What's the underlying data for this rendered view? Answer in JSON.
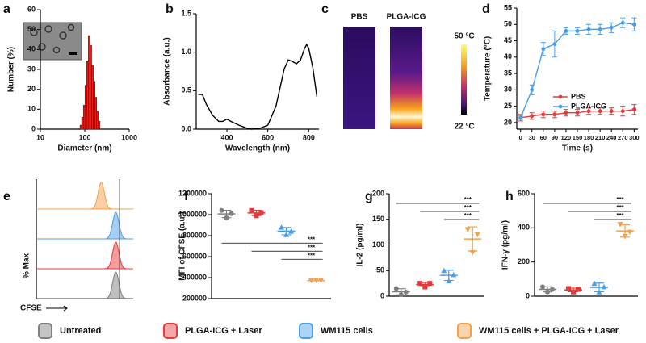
{
  "chart_data": [
    {
      "type": "histogram",
      "label": "a",
      "xlabel": "Diameter (nm)",
      "ylabel": "Number (%)",
      "log_x": true,
      "bins": [
        78,
        85,
        93,
        101,
        110,
        120,
        131,
        143,
        156,
        170,
        185,
        202,
        220
      ],
      "values": [
        2,
        6,
        12,
        22,
        34,
        47,
        42,
        32,
        24,
        16,
        9,
        4
      ],
      "color": "#e0201b",
      "xlim": [
        10,
        1000
      ],
      "xticks": [
        10,
        100,
        1000
      ],
      "ylim": [
        0,
        60
      ],
      "yticks": [
        0,
        10,
        20,
        30,
        40,
        50,
        60
      ]
    },
    {
      "type": "line",
      "label": "b",
      "xlabel": "Wavelength (nm)",
      "ylabel": "Absorbance (a.u.)",
      "x": [
        260,
        280,
        300,
        330,
        360,
        380,
        400,
        420,
        460,
        500,
        520,
        560,
        600,
        640,
        680,
        700,
        720,
        740,
        760,
        780,
        790,
        800,
        820,
        840
      ],
      "series": [
        {
          "color": "#000000",
          "values": [
            0.45,
            0.45,
            0.32,
            0.18,
            0.1,
            0.1,
            0.13,
            0.1,
            0.05,
            0.01,
            0.0,
            0.01,
            0.05,
            0.3,
            0.78,
            0.9,
            0.88,
            0.85,
            0.9,
            1.05,
            1.1,
            1.05,
            0.8,
            0.42
          ]
        }
      ],
      "xlim": [
        250,
        850
      ],
      "xticks": [
        400,
        600,
        800
      ],
      "ylim": [
        0,
        1.5
      ],
      "yticks": [
        {
          "value": 0,
          "label": "0.0"
        },
        {
          "value": 0.5,
          "label": "0.5"
        },
        {
          "value": 1,
          "label": "1.0"
        },
        {
          "value": 1.5,
          "label": "1.5"
        }
      ]
    },
    {
      "type": "thermal",
      "label": "c",
      "columns": [
        "PBS",
        "PLGA-ICG"
      ],
      "scale_max": "50 °C",
      "scale_min": "22 °C"
    },
    {
      "type": "line",
      "label": "d",
      "xlabel": "Time (s)",
      "ylabel": "Temperature (°C)",
      "markers": true,
      "legend": "lower center",
      "x": [
        0,
        30,
        60,
        90,
        120,
        150,
        180,
        210,
        240,
        270,
        300
      ],
      "series": [
        {
          "name": "PBS",
          "color": "#e8393a",
          "values": [
            21.5,
            22,
            22.5,
            22.5,
            23,
            23,
            23.5,
            23.5,
            23.5,
            23.5,
            24
          ],
          "errors": [
            1,
            1,
            1,
            1,
            1,
            1,
            1,
            1,
            1,
            1.5,
            1.5
          ]
        },
        {
          "name": "PLGA-ICG",
          "color": "#4a9de8",
          "values": [
            21.5,
            30,
            42.5,
            44,
            48,
            48,
            48.5,
            48.5,
            49,
            50.5,
            50
          ],
          "errors": [
            0.5,
            1.5,
            2,
            4,
            1,
            1,
            1.5,
            1.5,
            1.5,
            1.5,
            2
          ]
        }
      ],
      "xlim": [
        -10,
        310
      ],
      "xticks": [
        0,
        30,
        60,
        90,
        120,
        150,
        180,
        210,
        240,
        270,
        300
      ],
      "ylim": [
        18,
        55
      ],
      "yticks": [
        20,
        25,
        30,
        35,
        40,
        45,
        50,
        55
      ]
    },
    {
      "type": "flow",
      "label": "e",
      "xlabel": "CFSE",
      "ylabel": "% Max"
    },
    {
      "type": "dot",
      "label": "f",
      "ylabel": "MFI of CFSE (a.u.)",
      "categories": [
        null,
        null,
        null,
        null
      ],
      "groups": [
        {
          "values": [
            1040000,
            970000,
            1010000
          ]
        },
        {
          "values": [
            1040000,
            990000,
            1020000
          ]
        },
        {
          "values": [
            880000,
            810000,
            840000
          ]
        },
        {
          "values": [
            370000,
            375000,
            372000
          ]
        }
      ],
      "ylim": [
        200000,
        1200000
      ],
      "yticks": [
        200000,
        400000,
        600000,
        800000,
        1000000,
        1200000
      ],
      "significance": [
        {
          "from": 0,
          "to": 3,
          "label": "***"
        },
        {
          "from": 1,
          "to": 3,
          "label": "***"
        },
        {
          "from": 2,
          "to": 3,
          "label": "***"
        }
      ]
    },
    {
      "type": "dot",
      "label": "g",
      "ylabel": "IL-2 (pg/ml)",
      "categories": [
        null,
        null,
        null,
        null
      ],
      "groups": [
        {
          "values": [
            15,
            3,
            8
          ]
        },
        {
          "values": [
            25,
            18,
            25
          ]
        },
        {
          "values": [
            50,
            30,
            42
          ]
        },
        {
          "values": [
            130,
            85,
            120
          ]
        }
      ],
      "ylim": [
        0,
        200
      ],
      "yticks": [
        0,
        50,
        100,
        150,
        200
      ],
      "significance": [
        {
          "from": 0,
          "to": 3,
          "label": "***"
        },
        {
          "from": 1,
          "to": 3,
          "label": "***"
        },
        {
          "from": 2,
          "to": 3,
          "label": "***"
        }
      ]
    },
    {
      "type": "dot",
      "label": "h",
      "ylabel": "IFN-γ (pg/ml)",
      "categories": [
        null,
        null,
        null,
        null
      ],
      "groups": [
        {
          "values": [
            55,
            25,
            40
          ]
        },
        {
          "values": [
            45,
            25,
            40
          ]
        },
        {
          "values": [
            75,
            25,
            55
          ]
        },
        {
          "values": [
            420,
            350,
            375
          ]
        }
      ],
      "ylim": [
        0,
        600
      ],
      "yticks": [
        0,
        200,
        400,
        600
      ],
      "significance": [
        {
          "from": 0,
          "to": 3,
          "label": "***"
        },
        {
          "from": 1,
          "to": 3,
          "label": "***"
        },
        {
          "from": 2,
          "to": 3,
          "label": "***"
        }
      ]
    }
  ],
  "legend": [
    {
      "name": "Untreated",
      "color": "#7f7f7f"
    },
    {
      "name": "PLGA-ICG + Laser",
      "color": "#e8393a"
    },
    {
      "name": "WM115 cells",
      "color": "#4a9de8"
    },
    {
      "name": "WM115 cells + PLGA-ICG + Laser",
      "color": "#f5a04a"
    }
  ]
}
